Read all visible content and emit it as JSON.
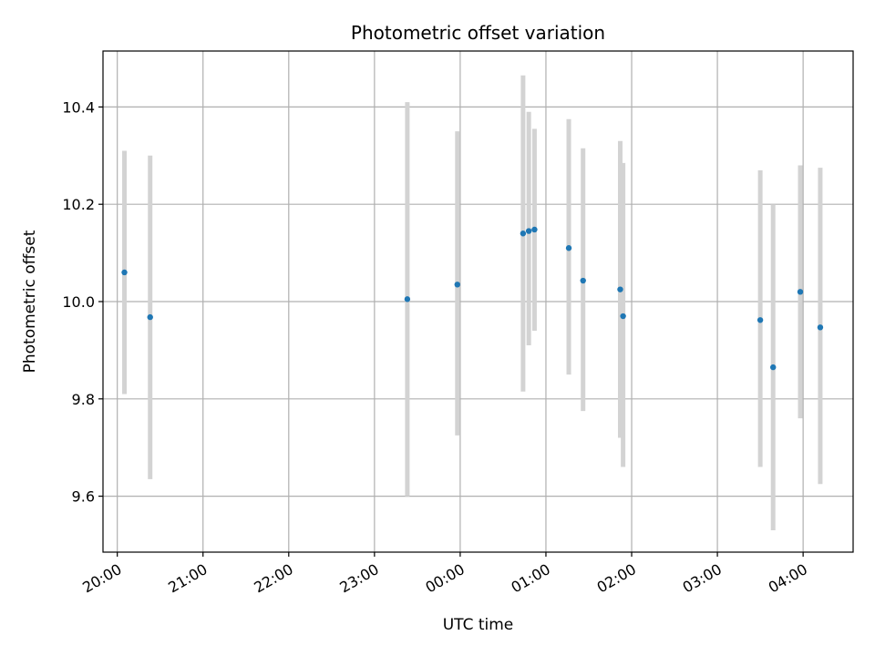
{
  "chart_data": {
    "type": "scatter",
    "title": "Photometric offset variation",
    "xlabel": "UTC time",
    "ylabel": "Photometric offset",
    "grid": true,
    "x_unit": "UTC time of night (hours past 20:00, wrapping past midnight)",
    "xlim": [
      "19:50",
      "04:35"
    ],
    "ylim": [
      9.485,
      10.515
    ],
    "x_ticks": [
      "20:00",
      "21:00",
      "22:00",
      "23:00",
      "00:00",
      "01:00",
      "02:00",
      "03:00",
      "04:00"
    ],
    "y_ticks": [
      "9.6",
      "9.8",
      "10.0",
      "10.2",
      "10.4"
    ],
    "colors": {
      "marker": "#1f77b4",
      "errorbar": "#d3d3d3",
      "grid": "#b0b0b0"
    },
    "points": [
      {
        "x": "20:05",
        "y": 10.06,
        "y_low": 9.81,
        "y_high": 10.31
      },
      {
        "x": "20:23",
        "y": 9.968,
        "y_low": 9.635,
        "y_high": 10.3
      },
      {
        "x": "23:23",
        "y": 10.005,
        "y_low": 9.6,
        "y_high": 10.41
      },
      {
        "x": "23:58",
        "y": 10.035,
        "y_low": 9.725,
        "y_high": 10.35
      },
      {
        "x": "00:44",
        "y": 10.14,
        "y_low": 9.815,
        "y_high": 10.465
      },
      {
        "x": "00:48",
        "y": 10.145,
        "y_low": 9.91,
        "y_high": 10.39
      },
      {
        "x": "00:52",
        "y": 10.148,
        "y_low": 9.94,
        "y_high": 10.355
      },
      {
        "x": "01:16",
        "y": 10.11,
        "y_low": 9.85,
        "y_high": 10.375
      },
      {
        "x": "01:26",
        "y": 10.043,
        "y_low": 9.775,
        "y_high": 10.315
      },
      {
        "x": "01:52",
        "y": 10.025,
        "y_low": 9.72,
        "y_high": 10.33
      },
      {
        "x": "01:54",
        "y": 9.97,
        "y_low": 9.66,
        "y_high": 10.285
      },
      {
        "x": "03:30",
        "y": 9.962,
        "y_low": 9.66,
        "y_high": 10.27
      },
      {
        "x": "03:39",
        "y": 9.865,
        "y_low": 9.53,
        "y_high": 10.2
      },
      {
        "x": "03:58",
        "y": 10.02,
        "y_low": 9.76,
        "y_high": 10.28
      },
      {
        "x": "04:12",
        "y": 9.947,
        "y_low": 9.625,
        "y_high": 10.275
      }
    ]
  }
}
